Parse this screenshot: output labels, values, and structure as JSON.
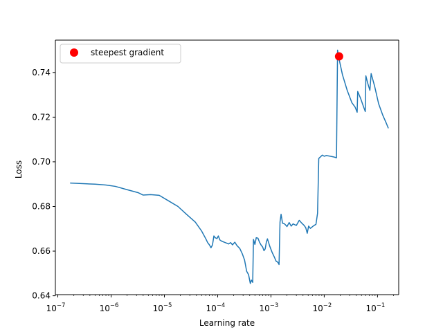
{
  "chart_data": {
    "type": "line",
    "xlabel": "Learning rate",
    "ylabel": "Loss",
    "xscale": "log",
    "xlim": [
      9e-08,
      0.25
    ],
    "ylim": [
      0.6405,
      0.7545
    ],
    "x_ticks": [
      {
        "base": "10",
        "exp": "−7",
        "value": 1e-07
      },
      {
        "base": "10",
        "exp": "−6",
        "value": 1e-06
      },
      {
        "base": "10",
        "exp": "−5",
        "value": 1e-05
      },
      {
        "base": "10",
        "exp": "−4",
        "value": 0.0001
      },
      {
        "base": "10",
        "exp": "−3",
        "value": 0.001
      },
      {
        "base": "10",
        "exp": "−2",
        "value": 0.01
      },
      {
        "base": "10",
        "exp": "−1",
        "value": 0.1
      }
    ],
    "y_ticks": [
      {
        "label": "0.64",
        "value": 0.64
      },
      {
        "label": "0.66",
        "value": 0.66
      },
      {
        "label": "0.68",
        "value": 0.68
      },
      {
        "label": "0.70",
        "value": 0.7
      },
      {
        "label": "0.72",
        "value": 0.72
      },
      {
        "label": "0.74",
        "value": 0.74
      }
    ],
    "grid": false,
    "legend_position": "upper-left",
    "series": [
      {
        "style": "line",
        "color": "#1f77b4",
        "points": [
          [
            1.7e-07,
            0.6905
          ],
          [
            3e-07,
            0.6902
          ],
          [
            5e-07,
            0.69
          ],
          [
            8e-07,
            0.6896
          ],
          [
            1.2e-06,
            0.689
          ],
          [
            2e-06,
            0.6875
          ],
          [
            3.2e-06,
            0.6862
          ],
          [
            4e-06,
            0.6851
          ],
          [
            5.5e-06,
            0.6853
          ],
          [
            8e-06,
            0.685
          ],
          [
            1.2e-05,
            0.6825
          ],
          [
            1.8e-05,
            0.68
          ],
          [
            2.6e-05,
            0.6765
          ],
          [
            3.8e-05,
            0.673
          ],
          [
            5e-05,
            0.669
          ],
          [
            6e-05,
            0.6655
          ],
          [
            6.5e-05,
            0.6638
          ],
          [
            7e-05,
            0.6628
          ],
          [
            7.5e-05,
            0.6615
          ],
          [
            8e-05,
            0.6628
          ],
          [
            8.5e-05,
            0.6668
          ],
          [
            9e-05,
            0.666
          ],
          [
            9.7e-05,
            0.6656
          ],
          [
            0.000103,
            0.6668
          ],
          [
            0.00011,
            0.665
          ],
          [
            0.00012,
            0.6644
          ],
          [
            0.00014,
            0.6638
          ],
          [
            0.00016,
            0.6632
          ],
          [
            0.000175,
            0.6638
          ],
          [
            0.00019,
            0.6628
          ],
          [
            0.00021,
            0.664
          ],
          [
            0.00023,
            0.6625
          ],
          [
            0.00026,
            0.6612
          ],
          [
            0.00029,
            0.6588
          ],
          [
            0.00032,
            0.656
          ],
          [
            0.00035,
            0.651
          ],
          [
            0.00038,
            0.6495
          ],
          [
            0.00041,
            0.6455
          ],
          [
            0.00043,
            0.647
          ],
          [
            0.000455,
            0.646
          ],
          [
            0.00047,
            0.6652
          ],
          [
            0.0005,
            0.663
          ],
          [
            0.00053,
            0.666
          ],
          [
            0.00057,
            0.6658
          ],
          [
            0.00061,
            0.664
          ],
          [
            0.00065,
            0.6628
          ],
          [
            0.0007,
            0.6618
          ],
          [
            0.00074,
            0.6602
          ],
          [
            0.00078,
            0.661
          ],
          [
            0.00082,
            0.664
          ],
          [
            0.00086,
            0.6655
          ],
          [
            0.00095,
            0.6622
          ],
          [
            0.00105,
            0.6595
          ],
          [
            0.00115,
            0.6575
          ],
          [
            0.00125,
            0.6555
          ],
          [
            0.00135,
            0.655
          ],
          [
            0.00142,
            0.654
          ],
          [
            0.00148,
            0.673
          ],
          [
            0.00155,
            0.6765
          ],
          [
            0.00165,
            0.6725
          ],
          [
            0.0018,
            0.6722
          ],
          [
            0.002,
            0.671
          ],
          [
            0.0022,
            0.6728
          ],
          [
            0.0024,
            0.6712
          ],
          [
            0.0026,
            0.6722
          ],
          [
            0.003,
            0.6715
          ],
          [
            0.0034,
            0.6738
          ],
          [
            0.0038,
            0.6725
          ],
          [
            0.0042,
            0.6715
          ],
          [
            0.0045,
            0.6705
          ],
          [
            0.0048,
            0.668
          ],
          [
            0.0051,
            0.6712
          ],
          [
            0.0055,
            0.6702
          ],
          [
            0.0062,
            0.6712
          ],
          [
            0.007,
            0.672
          ],
          [
            0.0075,
            0.677
          ],
          [
            0.0079,
            0.7015
          ],
          [
            0.0085,
            0.7022
          ],
          [
            0.0092,
            0.703
          ],
          [
            0.01,
            0.7025
          ],
          [
            0.011,
            0.7028
          ],
          [
            0.013,
            0.7025
          ],
          [
            0.015,
            0.7022
          ],
          [
            0.017,
            0.7018
          ],
          [
            0.0178,
            0.75
          ],
          [
            0.019,
            0.746
          ],
          [
            0.022,
            0.739
          ],
          [
            0.027,
            0.732
          ],
          [
            0.033,
            0.7265
          ],
          [
            0.038,
            0.7245
          ],
          [
            0.0415,
            0.7222
          ],
          [
            0.0425,
            0.7315
          ],
          [
            0.048,
            0.7285
          ],
          [
            0.055,
            0.7245
          ],
          [
            0.059,
            0.7225
          ],
          [
            0.0605,
            0.7385
          ],
          [
            0.065,
            0.7355
          ],
          [
            0.072,
            0.732
          ],
          [
            0.076,
            0.7395
          ],
          [
            0.088,
            0.734
          ],
          [
            0.105,
            0.726
          ],
          [
            0.125,
            0.721
          ],
          [
            0.145,
            0.7175
          ],
          [
            0.16,
            0.715
          ]
        ]
      },
      {
        "name": "steepest gradient",
        "style": "marker",
        "color": "#ff0000",
        "points": [
          [
            0.019,
            0.7472
          ]
        ]
      }
    ]
  }
}
